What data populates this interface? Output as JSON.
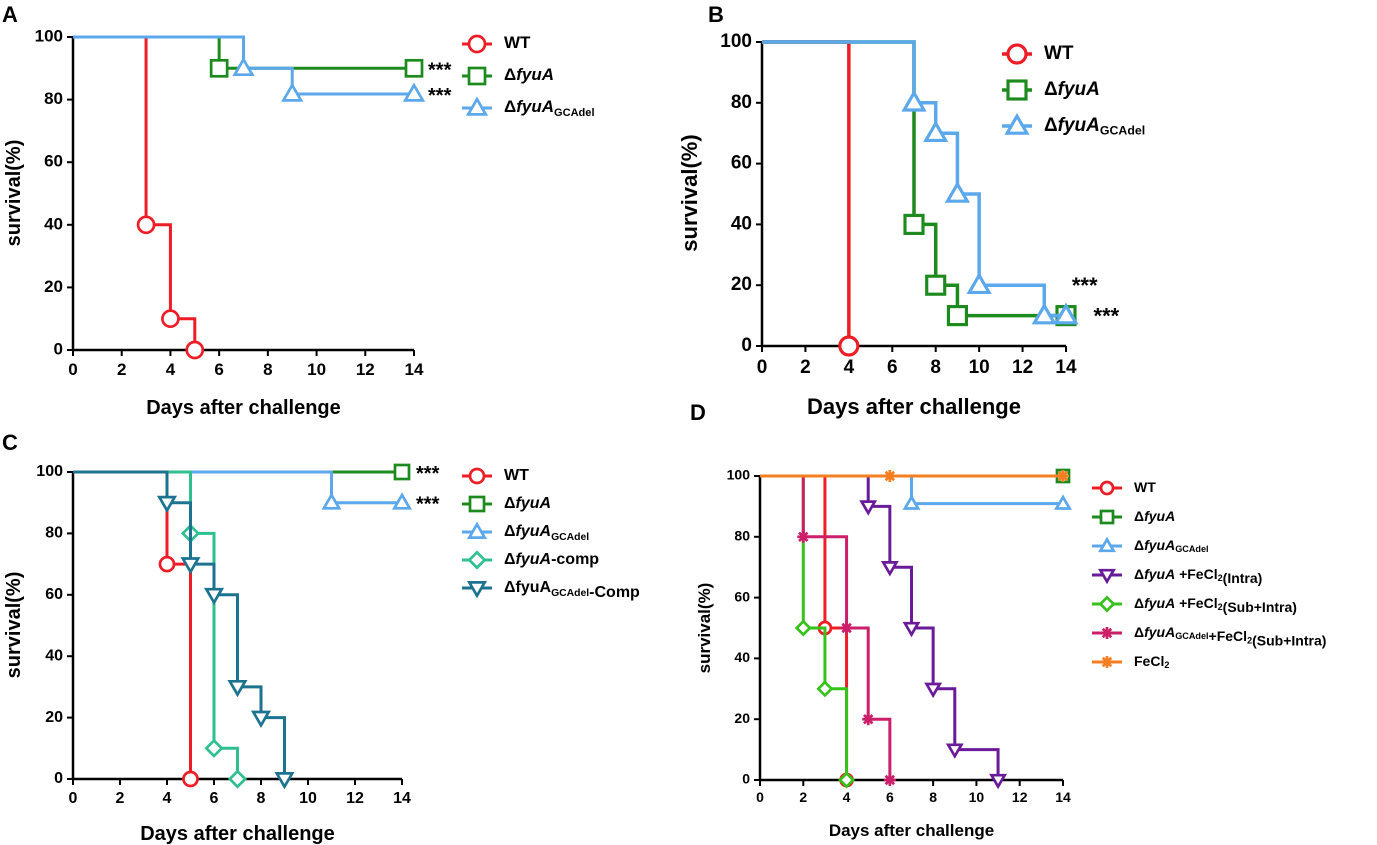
{
  "chart_data": [
    {
      "panel": "A",
      "type": "line",
      "xlabel": "Days after challenge",
      "ylabel": "survival(%)",
      "xlim": [
        0,
        14
      ],
      "ylim": [
        0,
        100
      ],
      "xticks": [
        0,
        2,
        4,
        6,
        8,
        10,
        12,
        14
      ],
      "yticks": [
        0,
        20,
        40,
        60,
        80,
        100
      ],
      "series": [
        {
          "name": "WT",
          "italic": "",
          "sub": "",
          "suffix": "",
          "color": "#ee1c25",
          "marker": "circle",
          "x": [
            0,
            3,
            4,
            5
          ],
          "y": [
            100,
            40,
            10,
            0
          ]
        },
        {
          "name": "Δ",
          "italic": "fyuA",
          "sub": "",
          "suffix": "",
          "color": "#1d8a1d",
          "marker": "square",
          "x": [
            0,
            6,
            14
          ],
          "y": [
            100,
            90,
            90
          ]
        },
        {
          "name": "Δ",
          "italic": "fyuA",
          "sub": "GCAdel",
          "suffix": "",
          "color": "#5ba8ec",
          "marker": "triangle",
          "x": [
            0,
            7,
            9,
            14
          ],
          "y": [
            100,
            90,
            81.8,
            81.8
          ]
        }
      ],
      "annotations": [
        {
          "text": "***",
          "x": 14,
          "y": 90
        },
        {
          "text": "***",
          "x": 14,
          "y": 81.8
        }
      ]
    },
    {
      "panel": "B",
      "type": "line",
      "xlabel": "Days after challenge",
      "ylabel": "survival(%)",
      "xlim": [
        0,
        14
      ],
      "ylim": [
        0,
        100
      ],
      "xticks": [
        0,
        2,
        4,
        6,
        8,
        10,
        12,
        14
      ],
      "yticks": [
        0,
        20,
        40,
        60,
        80,
        100
      ],
      "series": [
        {
          "name": "WT",
          "italic": "",
          "sub": "",
          "suffix": "",
          "color": "#ee1c25",
          "marker": "circle",
          "x": [
            0,
            4
          ],
          "y": [
            100,
            0
          ]
        },
        {
          "name": "Δ",
          "italic": "fyuA",
          "sub": "",
          "suffix": "",
          "color": "#1d8a1d",
          "marker": "square",
          "x": [
            0,
            7,
            8,
            9,
            14
          ],
          "y": [
            100,
            40,
            20,
            10,
            10
          ]
        },
        {
          "name": "Δ",
          "italic": "fyuA",
          "sub": "GCAdel",
          "suffix": "",
          "color": "#5ba8ec",
          "marker": "triangle",
          "x": [
            0,
            7,
            8,
            9,
            10,
            13,
            14
          ],
          "y": [
            100,
            80,
            70,
            50,
            20,
            10,
            10
          ]
        }
      ],
      "annotations": [
        {
          "text": "***",
          "x": 13.9,
          "y": 20
        },
        {
          "text": "***",
          "x": 14.9,
          "y": 10
        }
      ]
    },
    {
      "panel": "C",
      "type": "line",
      "xlabel": "Days after challenge",
      "ylabel": "survival(%)",
      "xlim": [
        0,
        14
      ],
      "ylim": [
        0,
        100
      ],
      "xticks": [
        0,
        2,
        4,
        6,
        8,
        10,
        12,
        14
      ],
      "yticks": [
        0,
        20,
        40,
        60,
        80,
        100
      ],
      "series": [
        {
          "name": "WT",
          "italic": "",
          "sub": "",
          "suffix": "",
          "color": "#ee1c25",
          "marker": "circle",
          "x": [
            0,
            4,
            5
          ],
          "y": [
            100,
            70,
            0
          ]
        },
        {
          "name": "Δ",
          "italic": "fyuA",
          "sub": "",
          "suffix": "",
          "color": "#1d8a1d",
          "marker": "square",
          "x": [
            0,
            14
          ],
          "y": [
            100,
            100
          ]
        },
        {
          "name": "Δ",
          "italic": "fyuA",
          "sub": "GCAdel",
          "suffix": "",
          "color": "#5ba8ec",
          "marker": "triangle",
          "x": [
            0,
            11,
            14
          ],
          "y": [
            100,
            90,
            90
          ]
        },
        {
          "name": "Δ",
          "italic": "fyuA",
          "sub": "",
          "suffix": "-comp",
          "color": "#2ec08f",
          "marker": "diamond",
          "x": [
            0,
            5,
            6,
            7
          ],
          "y": [
            100,
            80,
            10,
            0
          ]
        },
        {
          "name": "ΔfyuA",
          "italic": "",
          "sub": "GCAdel",
          "suffix": "-Comp",
          "color": "#1c7390",
          "marker": "invtriangle",
          "x": [
            0,
            4,
            5,
            6,
            7,
            8,
            9
          ],
          "y": [
            100,
            90,
            70,
            60,
            30,
            20,
            0
          ]
        }
      ],
      "annotations": [
        {
          "text": "***",
          "x": 14,
          "y": 100
        },
        {
          "text": "***",
          "x": 14,
          "y": 90
        }
      ]
    },
    {
      "panel": "D",
      "type": "line",
      "xlabel": "Days after challenge",
      "ylabel": "survival(%)",
      "xlim": [
        0,
        14
      ],
      "ylim": [
        0,
        100
      ],
      "xticks": [
        0,
        2,
        4,
        6,
        8,
        10,
        12,
        14
      ],
      "yticks": [
        0,
        20,
        40,
        60,
        80,
        100
      ],
      "series": [
        {
          "name": "WT",
          "italic": "",
          "sub": "",
          "suffix": "",
          "color": "#ee1c25",
          "marker": "circle",
          "x": [
            0,
            3,
            4
          ],
          "y": [
            100,
            50,
            0
          ]
        },
        {
          "name": "Δ",
          "italic": "fyuA",
          "sub": "",
          "suffix": "",
          "color": "#1d8a1d",
          "marker": "square",
          "x": [
            0,
            14
          ],
          "y": [
            100,
            100
          ]
        },
        {
          "name": "Δ",
          "italic": "fyuA",
          "sub": "GCAdel",
          "suffix": "",
          "color": "#5ba8ec",
          "marker": "triangle",
          "x": [
            0,
            7,
            14
          ],
          "y": [
            100,
            90.9,
            90.9
          ]
        },
        {
          "name": "Δ",
          "italic": "fyuA",
          "sub": "",
          "suffix": " +FeCl",
          "sub2": "2",
          "tail": "(Intra)",
          "color": "#6a1b9a",
          "marker": "invtriangle",
          "x": [
            0,
            5,
            6,
            7,
            8,
            9,
            11
          ],
          "y": [
            100,
            90,
            70,
            50,
            30,
            10,
            0
          ]
        },
        {
          "name": "Δ",
          "italic": "fyuA",
          "sub": "",
          "suffix": " +FeCl",
          "sub2": "2",
          "tail": "(Sub+Intra)",
          "color": "#35c21b",
          "marker": "diamond",
          "x": [
            0,
            2,
            3,
            4
          ],
          "y": [
            100,
            50,
            30,
            0
          ]
        },
        {
          "name": "Δ",
          "italic": "fyuA",
          "sub": "GCAdel",
          "suffix": "+FeCl",
          "sub2": "2",
          "tail": "(Sub+Intra)",
          "color": "#cc1f69",
          "marker": "asterisk",
          "x": [
            0,
            2,
            4,
            5,
            6
          ],
          "y": [
            100,
            80,
            50,
            20,
            0
          ]
        },
        {
          "name": "FeCl",
          "italic": "",
          "sub": "",
          "suffix": "",
          "sub2": "2",
          "tail": "",
          "color": "#f57f20",
          "marker": "asterisk",
          "x": [
            0,
            6,
            14
          ],
          "y": [
            100,
            100,
            100
          ]
        }
      ],
      "annotations": []
    }
  ]
}
